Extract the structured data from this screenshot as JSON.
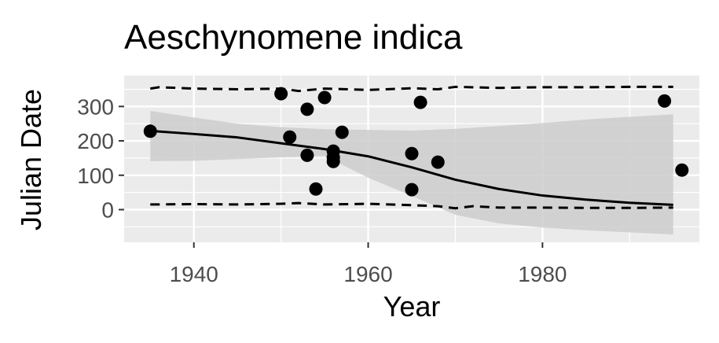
{
  "chart_data": {
    "type": "scatter",
    "title": "Aeschynomene indica",
    "xlabel": "Year",
    "ylabel": "Julian Date",
    "xlim": [
      1932,
      1998
    ],
    "ylim": [
      -95,
      390
    ],
    "x_ticks": [
      1940,
      1960,
      1980
    ],
    "y_ticks": [
      0,
      100,
      200,
      300
    ],
    "grid": true,
    "legend": "none",
    "points": [
      {
        "x": 1935,
        "y": 228
      },
      {
        "x": 1950,
        "y": 337
      },
      {
        "x": 1951,
        "y": 211
      },
      {
        "x": 1953,
        "y": 292
      },
      {
        "x": 1953,
        "y": 158
      },
      {
        "x": 1954,
        "y": 60
      },
      {
        "x": 1955,
        "y": 326
      },
      {
        "x": 1956,
        "y": 170
      },
      {
        "x": 1956,
        "y": 152
      },
      {
        "x": 1956,
        "y": 140
      },
      {
        "x": 1957,
        "y": 225
      },
      {
        "x": 1965,
        "y": 163
      },
      {
        "x": 1965,
        "y": 58
      },
      {
        "x": 1966,
        "y": 312
      },
      {
        "x": 1968,
        "y": 138
      },
      {
        "x": 1994,
        "y": 316
      },
      {
        "x": 1996,
        "y": 115
      }
    ],
    "trend_line": {
      "x": [
        1935,
        1940,
        1945,
        1950,
        1955,
        1960,
        1965,
        1970,
        1975,
        1980,
        1985,
        1990,
        1995
      ],
      "y": [
        229,
        220,
        210,
        193,
        176,
        155,
        123,
        87,
        60,
        41,
        29,
        20,
        14
      ]
    },
    "confidence_band": {
      "x": [
        1935,
        1940,
        1945,
        1950,
        1955,
        1960,
        1965,
        1970,
        1975,
        1980,
        1985,
        1990,
        1995
      ],
      "upper": [
        287,
        268,
        250,
        240,
        234,
        232,
        230,
        235,
        243,
        252,
        262,
        270,
        277
      ],
      "lower": [
        141,
        142,
        147,
        152,
        156,
        93,
        40,
        -15,
        -40,
        -52,
        -60,
        -66,
        -72
      ]
    },
    "quantile_upper": {
      "x": [
        1935,
        1936,
        1940,
        1945,
        1950,
        1952,
        1955,
        1960,
        1965,
        1968,
        1970,
        1975,
        1980,
        1985,
        1990,
        1995
      ],
      "y": [
        352,
        356,
        352,
        350,
        352,
        345,
        352,
        348,
        353,
        350,
        357,
        354,
        356,
        356,
        357,
        357
      ]
    },
    "quantile_lower": {
      "x": [
        1935,
        1940,
        1945,
        1950,
        1952,
        1955,
        1960,
        1965,
        1968,
        1970,
        1972,
        1975,
        1980,
        1985,
        1990,
        1995
      ],
      "y": [
        15,
        16,
        15,
        17,
        19,
        15,
        17,
        13,
        10,
        4,
        10,
        6,
        6,
        5,
        5,
        6
      ]
    },
    "colors": {
      "panel": "#ebebeb",
      "grid": "#ffffff",
      "band": "#cccccc",
      "line": "#000000",
      "point": "#000000"
    }
  }
}
